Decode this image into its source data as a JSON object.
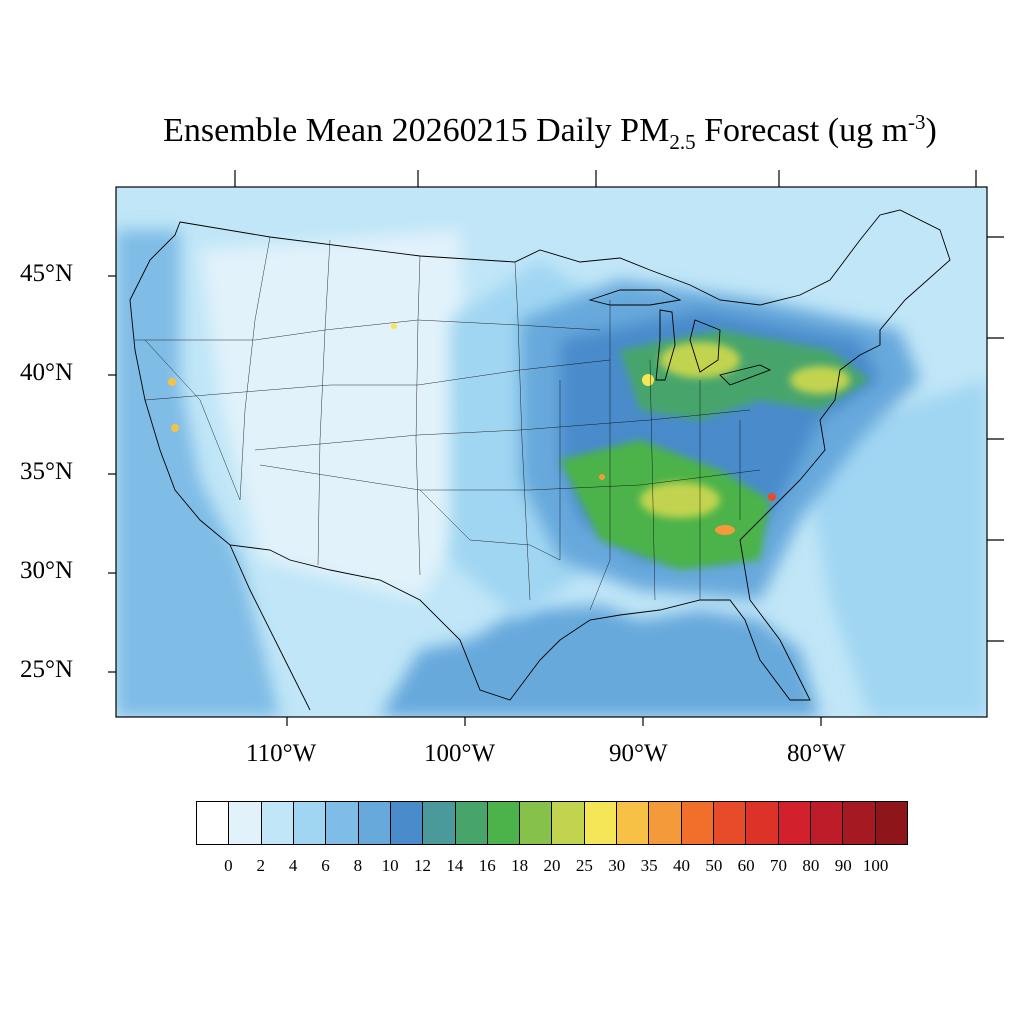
{
  "title": {
    "main": "Ensemble Mean 20260215 Daily PM",
    "sub": "2.5",
    "mid": " Forecast (ug m",
    "sup": "-3",
    "end": ")"
  },
  "lat_labels": [
    "45°N",
    "40°N",
    "35°N",
    "30°N",
    "25°N"
  ],
  "lon_labels": [
    "110°W",
    "100°W",
    "90°W",
    "80°W"
  ],
  "colorbar": {
    "labels": [
      "0",
      "2",
      "4",
      "6",
      "8",
      "10",
      "12",
      "14",
      "16",
      "18",
      "20",
      "25",
      "30",
      "35",
      "40",
      "50",
      "60",
      "70",
      "80",
      "90",
      "100"
    ],
    "colors": [
      "#ffffff",
      "#e1f2fb",
      "#c0e6f7",
      "#a0d6f2",
      "#7fbce6",
      "#68a9dc",
      "#4a8bcb",
      "#4a9a9c",
      "#47a56c",
      "#4cb34a",
      "#86c24a",
      "#c2d44f",
      "#f5e658",
      "#f6c144",
      "#f59a3a",
      "#f26e2b",
      "#e84b2a",
      "#dc3227",
      "#d2202d",
      "#bd1c28",
      "#a51a22",
      "#8e161b"
    ]
  },
  "map": {
    "region": "Contiguous United States",
    "background_color": "#c0e6f7"
  }
}
